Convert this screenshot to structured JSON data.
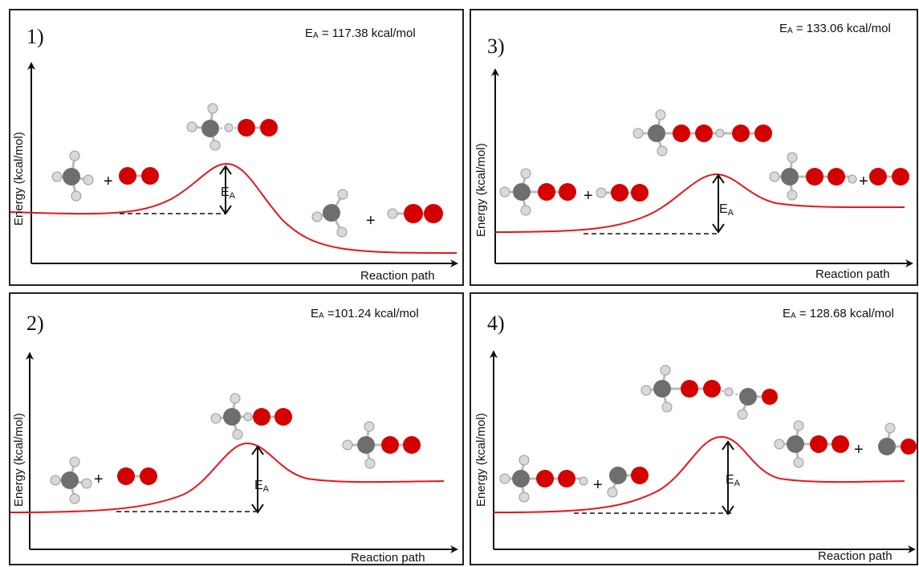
{
  "colors": {
    "curve": "#e8141b",
    "oxygen": "#d40000",
    "carbon": "#6e6e6e",
    "hydrogen": "#d9d9d9",
    "axis": "#111111"
  },
  "axis": {
    "xlabel": "Reaction path",
    "ylabel": "Energy (kcal/mol)"
  },
  "ea_marker": {
    "main": "E",
    "sub": "A"
  },
  "plus": "+",
  "panels": [
    {
      "label": "1)",
      "ea_text": "= 117.38 kcal/mol"
    },
    {
      "label": "3)",
      "ea_text": "= 133.06 kcal/mol"
    },
    {
      "label": "2)",
      "ea_text": "=101.24 kcal/mol"
    },
    {
      "label": "4)",
      "ea_text": "= 128.68 kcal/mol"
    }
  ]
}
